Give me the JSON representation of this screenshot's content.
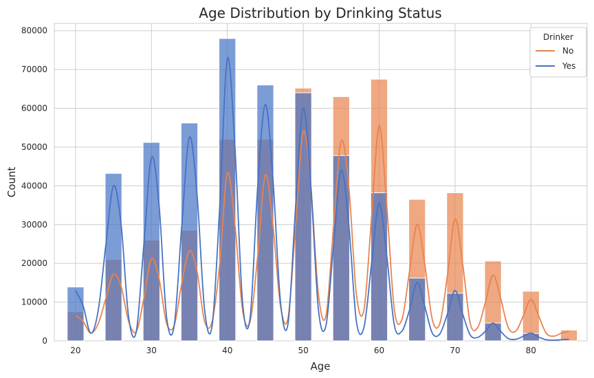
{
  "chart_data": {
    "type": "bar",
    "title": "Age Distribution by Drinking Status",
    "xlabel": "Age",
    "ylabel": "Count",
    "xlim": [
      17.2,
      87.4
    ],
    "ylim": [
      0,
      81900
    ],
    "xticks": [
      20,
      30,
      40,
      50,
      60,
      70,
      80
    ],
    "yticks": [
      0,
      10000,
      20000,
      30000,
      40000,
      50000,
      60000,
      70000,
      80000
    ],
    "grid": true,
    "legend": {
      "title": "Drinker",
      "placement": "top-right"
    },
    "bin_width": 2.2,
    "bins": [
      20,
      25,
      30,
      35,
      40,
      45,
      50,
      55,
      60,
      65,
      70,
      75,
      80,
      85
    ],
    "series": [
      {
        "name": "No",
        "color": "#e8834d",
        "values": [
          7500,
          21000,
          26000,
          28500,
          52000,
          52000,
          65200,
          63000,
          67500,
          36500,
          38200,
          20600,
          12800,
          2800
        ]
      },
      {
        "name": "Yes",
        "color": "#4472c4",
        "values": [
          13900,
          43200,
          51200,
          56200,
          78000,
          66000,
          64000,
          47800,
          38200,
          16200,
          12300,
          4600,
          1900,
          0
        ]
      }
    ],
    "kde": [
      {
        "name": "No",
        "x": [
          20,
          21,
          22,
          23,
          24,
          25,
          26,
          27,
          28,
          29,
          30,
          31,
          32,
          33,
          34,
          35,
          36,
          37,
          38,
          39,
          40,
          41,
          42,
          43,
          44,
          45,
          46,
          47,
          48,
          49,
          50,
          51,
          52,
          53,
          54,
          55,
          56,
          57,
          58,
          59,
          60,
          61,
          62,
          63,
          64,
          65,
          66,
          67,
          68,
          69,
          70,
          71,
          72,
          73,
          74,
          75,
          76,
          77,
          78,
          79,
          80,
          81,
          82,
          83,
          84,
          85
        ],
        "y": [
          6600,
          5000,
          2000,
          4500,
          11000,
          17200,
          14000,
          5000,
          2400,
          11000,
          21200,
          16000,
          4500,
          4000,
          15000,
          23200,
          18000,
          5000,
          5000,
          20000,
          43200,
          30000,
          8000,
          5000,
          22000,
          42800,
          30000,
          9000,
          6000,
          30000,
          54000,
          40000,
          12000,
          6500,
          30000,
          51500,
          40000,
          12000,
          8000,
          32000,
          55500,
          35000,
          8000,
          5500,
          18000,
          30000,
          20000,
          5500,
          4500,
          17000,
          31500,
          20000,
          4500,
          3500,
          10000,
          17000,
          11000,
          3500,
          2500,
          6500,
          10700,
          6500,
          2000,
          1200,
          2000,
          2500
        ]
      },
      {
        "name": "Yes",
        "x": [
          20,
          21,
          22,
          23,
          24,
          25,
          26,
          27,
          28,
          29,
          30,
          31,
          32,
          33,
          34,
          35,
          36,
          37,
          38,
          39,
          40,
          41,
          42,
          43,
          44,
          45,
          46,
          47,
          48,
          49,
          50,
          51,
          52,
          53,
          54,
          55,
          56,
          57,
          58,
          59,
          60,
          61,
          62,
          63,
          64,
          65,
          66,
          67,
          68,
          69,
          70,
          71,
          72,
          73,
          74,
          75,
          76,
          77,
          78,
          79,
          80,
          81,
          82,
          83,
          84,
          85
        ],
        "y": [
          13000,
          9000,
          2000,
          8000,
          25000,
          40000,
          30000,
          6000,
          2400,
          25000,
          47300,
          35000,
          6000,
          4000,
          30000,
          52500,
          38000,
          8000,
          4000,
          35000,
          72800,
          50000,
          10000,
          6000,
          40000,
          61000,
          42000,
          10000,
          4500,
          35000,
          60000,
          40000,
          8000,
          4000,
          25000,
          44000,
          30000,
          5000,
          3500,
          20000,
          35500,
          22000,
          4000,
          2500,
          8000,
          15000,
          9000,
          2000,
          1800,
          7000,
          13000,
          7000,
          1500,
          900,
          2500,
          4600,
          2500,
          600,
          400,
          1200,
          2000,
          1000,
          300,
          200,
          300,
          400
        ]
      }
    ]
  }
}
